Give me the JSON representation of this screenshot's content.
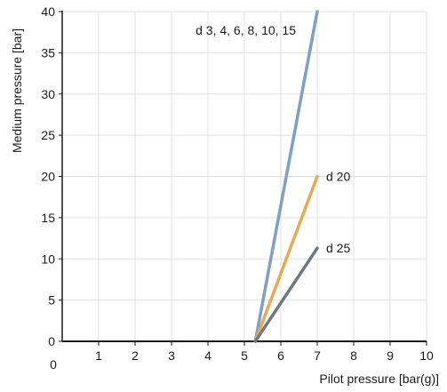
{
  "chart_data": {
    "type": "line",
    "xlabel": "Pilot pressure [bar(g)]",
    "ylabel": "Medium pressure [bar]",
    "origin_label": "0",
    "xlim": [
      0,
      10
    ],
    "ylim": [
      0,
      40
    ],
    "x_ticks": [
      1,
      2,
      3,
      4,
      5,
      6,
      7,
      8,
      9,
      10
    ],
    "y_ticks": [
      0,
      5,
      10,
      15,
      20,
      25,
      30,
      35,
      40
    ],
    "grid": true,
    "series": [
      {
        "name": "d 3, 4, 6, 8, 10, 15",
        "color": "#7f9fc6",
        "x": [
          5.3,
          7.0
        ],
        "y": [
          0,
          40
        ]
      },
      {
        "name": "d 20",
        "color": "#e8a950",
        "x": [
          5.3,
          7.0
        ],
        "y": [
          0,
          20
        ]
      },
      {
        "name": "d 25",
        "color": "#6d7880",
        "x": [
          5.3,
          7.0
        ],
        "y": [
          0,
          11.3
        ]
      }
    ]
  }
}
